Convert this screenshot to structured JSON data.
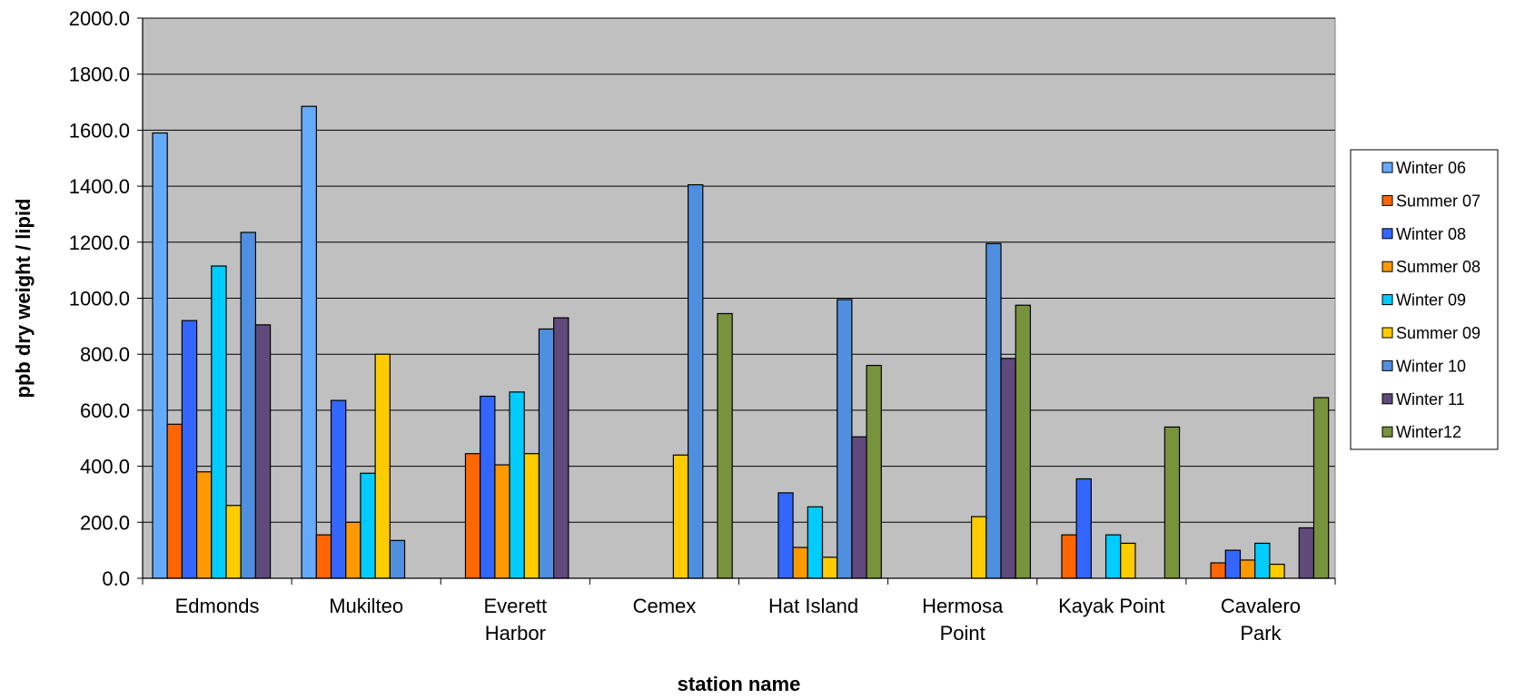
{
  "chart_data": {
    "type": "bar",
    "xlabel": "station name",
    "ylabel": "ppb dry weight / lipid",
    "ylim": [
      0,
      2000
    ],
    "yticks": [
      "0.0",
      "200.0",
      "400.0",
      "600.0",
      "800.0",
      "1000.0",
      "1200.0",
      "1400.0",
      "1600.0",
      "1800.0",
      "2000.0"
    ],
    "grid": true,
    "legend_position": "right",
    "plot_background": "#c0c0c0",
    "categories": [
      [
        "Edmonds"
      ],
      [
        "Mukilteo"
      ],
      [
        "Everett",
        "Harbor"
      ],
      [
        "Cemex"
      ],
      [
        "Hat Island"
      ],
      [
        "Hermosa",
        "Point"
      ],
      [
        "Kayak Point"
      ],
      [
        "Cavalero",
        "Park"
      ]
    ],
    "series": [
      {
        "name": "Winter 06",
        "color": "#66aaff",
        "values": [
          1590,
          1685,
          null,
          null,
          null,
          null,
          null,
          null
        ]
      },
      {
        "name": "Summer 07",
        "color": "#ff6600",
        "values": [
          550,
          155,
          445,
          null,
          null,
          null,
          155,
          55
        ]
      },
      {
        "name": "Winter 08",
        "color": "#3366ff",
        "values": [
          920,
          635,
          650,
          null,
          305,
          null,
          355,
          100
        ]
      },
      {
        "name": "Summer 08",
        "color": "#ff9900",
        "values": [
          380,
          200,
          405,
          null,
          110,
          null,
          null,
          65
        ]
      },
      {
        "name": "Winter 09",
        "color": "#00ccff",
        "values": [
          1115,
          375,
          665,
          null,
          255,
          null,
          155,
          125
        ]
      },
      {
        "name": "Summer 09",
        "color": "#ffcc00",
        "values": [
          260,
          800,
          445,
          440,
          75,
          220,
          125,
          50
        ]
      },
      {
        "name": "Winter 10",
        "color": "#4f8fdf",
        "values": [
          1235,
          135,
          890,
          1405,
          995,
          1195,
          null,
          null
        ]
      },
      {
        "name": "Winter 11",
        "color": "#604a7b",
        "values": [
          905,
          null,
          930,
          null,
          505,
          785,
          null,
          180
        ]
      },
      {
        "name": "Winter12",
        "color": "#77933c",
        "values": [
          null,
          null,
          null,
          945,
          760,
          975,
          540,
          645
        ]
      }
    ]
  }
}
